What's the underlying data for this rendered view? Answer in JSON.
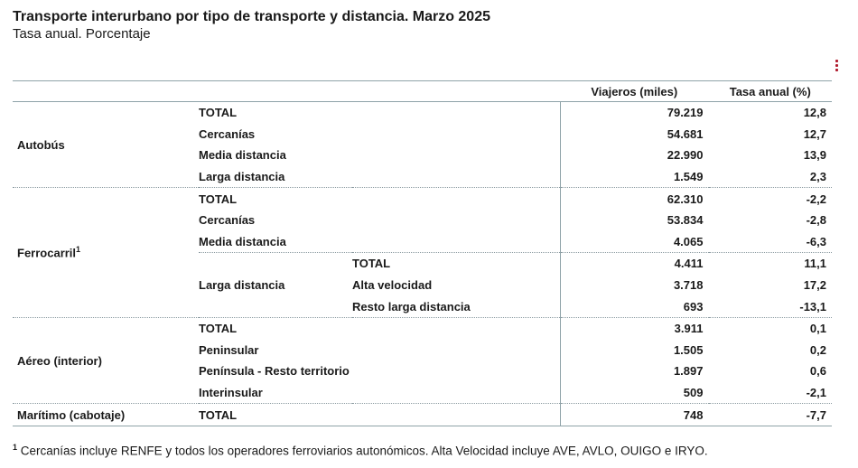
{
  "title": "Transporte interurbano por tipo de transporte y distancia. Marzo 2025",
  "subtitle": "Tasa anual. Porcentaje",
  "menu_icon": "vertical-dots-icon",
  "accent_color": "#b01c2e",
  "table": {
    "headers": {
      "viajeros": "Viajeros (miles)",
      "tasa": "Tasa anual (%)"
    },
    "modes": {
      "autobus": "Autobús",
      "ferrocarril": "Ferrocarril",
      "ferrocarril_sup": "1",
      "aereo": "Aéreo (interior)",
      "maritimo": "Marítimo (cabotaje)"
    },
    "rows": {
      "bus_total": {
        "label": "TOTAL",
        "viajeros": "79.219",
        "tasa": "12,8"
      },
      "bus_cercanias": {
        "label": "Cercanías",
        "viajeros": "54.681",
        "tasa": "12,7"
      },
      "bus_media": {
        "label": "Media distancia",
        "viajeros": "22.990",
        "tasa": "13,9"
      },
      "bus_larga": {
        "label": "Larga distancia",
        "viajeros": "1.549",
        "tasa": "2,3"
      },
      "fc_total": {
        "label": "TOTAL",
        "viajeros": "62.310",
        "tasa": "-2,2"
      },
      "fc_cercanias": {
        "label": "Cercanías",
        "viajeros": "53.834",
        "tasa": "-2,8"
      },
      "fc_media": {
        "label": "Media distancia",
        "viajeros": "4.065",
        "tasa": "-6,3"
      },
      "fc_larga_label": "Larga distancia",
      "fc_larga_total": {
        "label": "TOTAL",
        "viajeros": "4.411",
        "tasa": "11,1"
      },
      "fc_alta": {
        "label": "Alta velocidad",
        "viajeros": "3.718",
        "tasa": "17,2"
      },
      "fc_resto": {
        "label": "Resto larga distancia",
        "viajeros": "693",
        "tasa": "-13,1"
      },
      "aer_total": {
        "label": "TOTAL",
        "viajeros": "3.911",
        "tasa": "0,1"
      },
      "aer_peninsular": {
        "label": "Peninsular",
        "viajeros": "1.505",
        "tasa": "0,2"
      },
      "aer_pen_resto": {
        "label": "Península - Resto territorio",
        "viajeros": "1.897",
        "tasa": "0,6"
      },
      "aer_interinsular": {
        "label": "Interinsular",
        "viajeros": "509",
        "tasa": "-2,1"
      },
      "mar_total": {
        "label": "TOTAL",
        "viajeros": "748",
        "tasa": "-7,7"
      }
    }
  },
  "footnote": {
    "marker": "1",
    "text": " Cercanías incluye RENFE y todos los operadores ferroviarios autonómicos. Alta Velocidad incluye AVE, AVLO, OUIGO e IRYO."
  }
}
